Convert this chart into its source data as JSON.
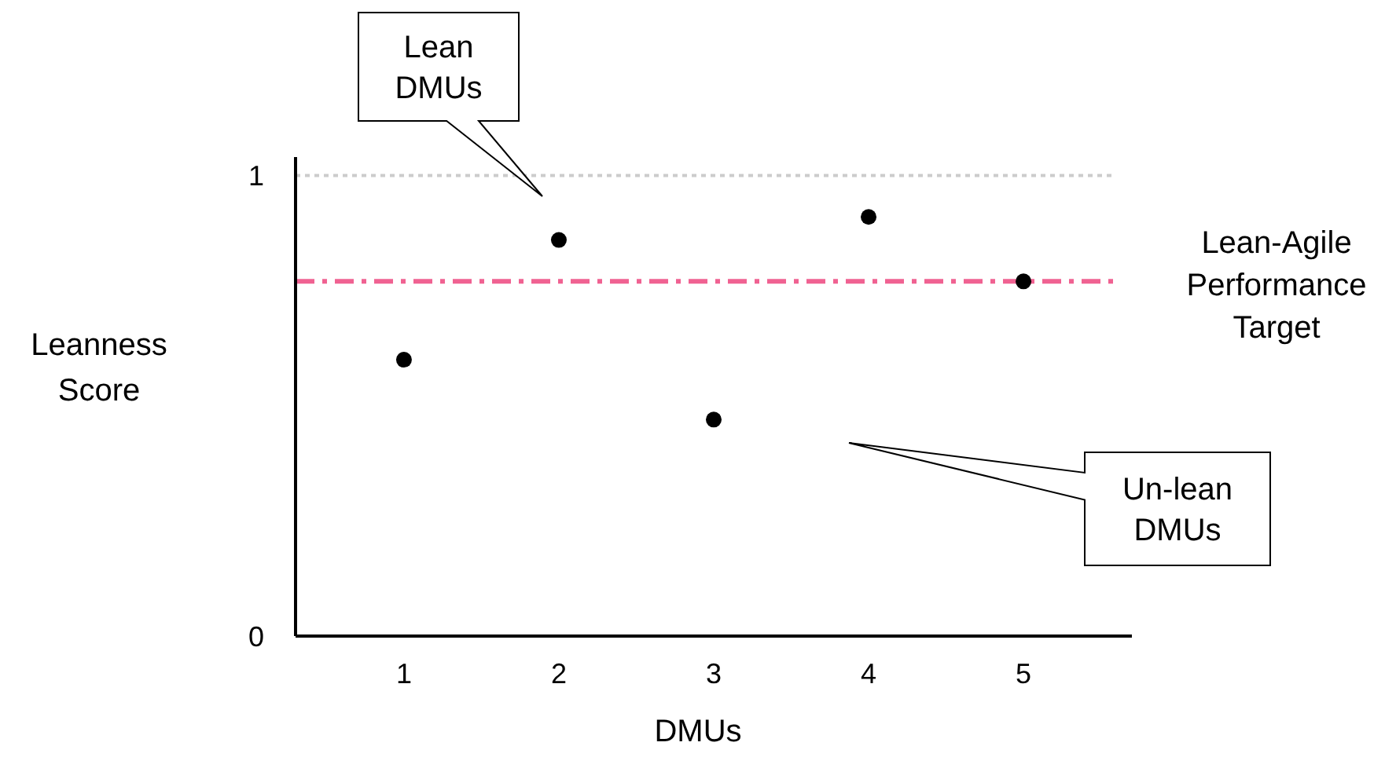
{
  "chart_data": {
    "type": "scatter",
    "xlabel": "DMUs",
    "ylabel": "Leanness Score",
    "categories": [
      "1",
      "2",
      "3",
      "4",
      "5"
    ],
    "series": [
      {
        "color": "#000000",
        "values": [
          0.6,
          0.86,
          0.47,
          0.91,
          0.77
        ]
      }
    ],
    "ylim": [
      0,
      1.04
    ],
    "yticks": [
      0,
      1
    ],
    "grid": false,
    "marker": "circle",
    "ref_lines": [
      {
        "axis": "y",
        "value": 1,
        "color": "#cccccc",
        "line_style": "dotted"
      },
      {
        "axis": "y",
        "value": 0.77,
        "label": "Lean-Agile Performance Target",
        "color": "#f06292",
        "line_style": "dashdot"
      }
    ],
    "annotations": [
      "Lean DMUs",
      "Un-lean DMUs"
    ]
  }
}
